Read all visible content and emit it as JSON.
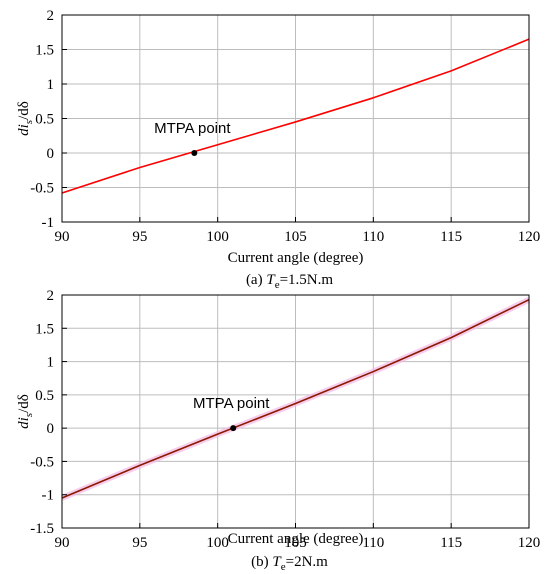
{
  "chart_data": [
    {
      "type": "line",
      "ylabel": "di_s/dδ",
      "xlabel": "Current angle (degree)",
      "caption": {
        "prefix": "(a) ",
        "var": "T",
        "sub": "e",
        "suffix": "=1.5N.m"
      },
      "xlim": [
        90,
        120
      ],
      "ylim": [
        -1,
        2
      ],
      "xticks": [
        90,
        95,
        100,
        105,
        110,
        115,
        120
      ],
      "yticks": [
        -1,
        -0.5,
        0,
        0.5,
        1,
        1.5,
        2
      ],
      "grid": true,
      "series": [
        {
          "color": "#ff0000",
          "x": [
            90,
            95,
            100,
            105,
            110,
            115,
            120
          ],
          "y": [
            -0.58,
            -0.21,
            0.12,
            0.45,
            0.8,
            1.19,
            1.65
          ]
        }
      ],
      "marker": {
        "x": 98.5,
        "y": 0,
        "label": "MTPA point"
      }
    },
    {
      "type": "line",
      "ylabel": "di_s/dδ",
      "xlabel": "Current angle (degree)",
      "caption": {
        "prefix": "(b) ",
        "var": "T",
        "sub": "e",
        "suffix": "=2N.m"
      },
      "xlim": [
        90,
        120
      ],
      "ylim": [
        -1.5,
        2
      ],
      "xticks": [
        90,
        95,
        100,
        105,
        110,
        115,
        120
      ],
      "yticks": [
        -1.5,
        -1,
        -0.5,
        0,
        0.5,
        1,
        1.5,
        2
      ],
      "grid": true,
      "series": [
        {
          "color": "#8b1a00",
          "x": [
            90,
            95,
            100,
            105,
            110,
            115,
            120
          ],
          "y": [
            -1.05,
            -0.56,
            -0.09,
            0.37,
            0.85,
            1.36,
            1.93
          ]
        }
      ],
      "marker": {
        "x": 101,
        "y": 0,
        "label": "MTPA point"
      }
    }
  ]
}
